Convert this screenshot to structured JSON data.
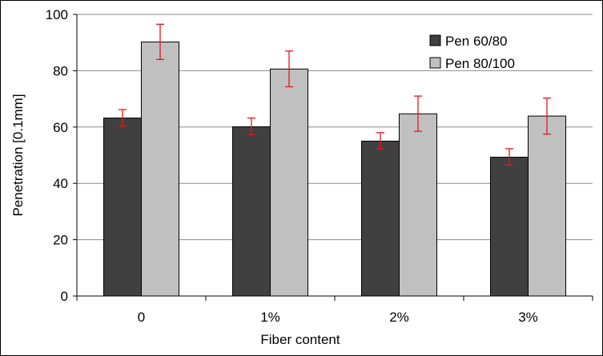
{
  "chart_data": {
    "type": "bar",
    "title": "",
    "xlabel": "Fiber content",
    "ylabel": "Penetration [0.1mm]",
    "categories": [
      "0",
      "1%",
      "2%",
      "3%"
    ],
    "ylim": [
      0,
      100
    ],
    "yticks": [
      0,
      20,
      40,
      60,
      80,
      100
    ],
    "grid": true,
    "legend_position": "top-right",
    "series": [
      {
        "name": "Pen 60/80",
        "color": "#404040",
        "values": [
          63.2,
          60.1,
          55.0,
          49.3
        ],
        "error_low": [
          60.3,
          57.3,
          52.3,
          46.5
        ],
        "error_high": [
          66.2,
          63.2,
          58.0,
          52.3
        ]
      },
      {
        "name": "Pen 80/100",
        "color": "#c0c0c0",
        "values": [
          90.2,
          80.6,
          64.7,
          63.9
        ],
        "error_low": [
          84.0,
          74.3,
          58.5,
          57.5
        ],
        "error_high": [
          96.5,
          87.0,
          71.0,
          70.3
        ]
      }
    ],
    "error_bar_color": "#e8151b"
  }
}
